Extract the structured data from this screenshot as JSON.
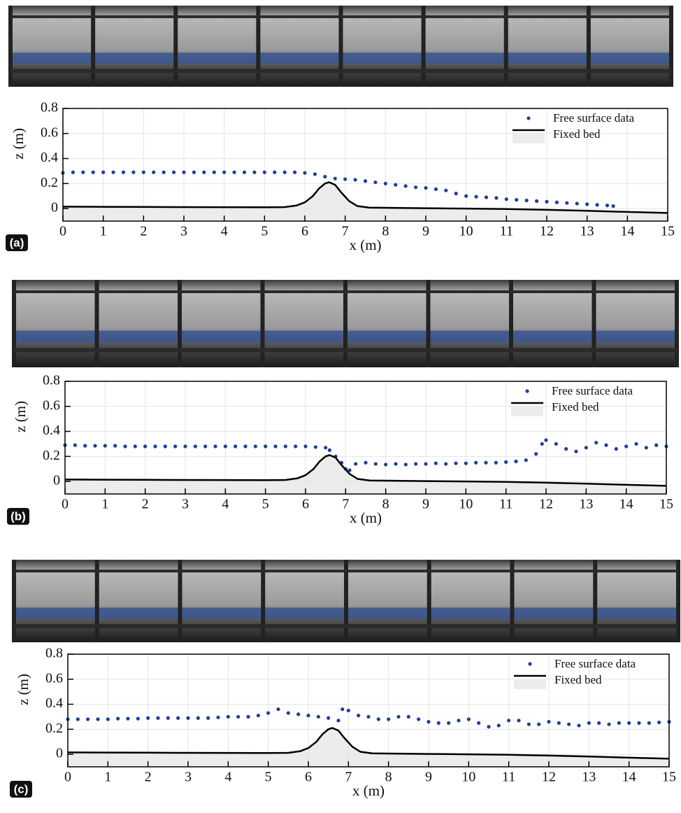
{
  "chart_data": [
    {
      "type": "scatter",
      "label": "(a)",
      "xlabel": "x (m)",
      "ylabel": "z (m)",
      "xlim": [
        0,
        15
      ],
      "ylim": [
        -0.1,
        0.8
      ],
      "xticks": [
        0,
        1,
        2,
        3,
        4,
        5,
        6,
        7,
        8,
        9,
        10,
        11,
        12,
        13,
        14,
        15
      ],
      "yticks": [
        0,
        0.2,
        0.4,
        0.6,
        0.8
      ],
      "grid": true,
      "legend": "upper right",
      "series": [
        {
          "name": "Free surface data",
          "color": "#1f3f99",
          "mode": "markers",
          "x": [
            0,
            0.25,
            0.5,
            0.75,
            1,
            1.25,
            1.5,
            1.75,
            2,
            2.25,
            2.5,
            2.75,
            3,
            3.25,
            3.5,
            3.75,
            4,
            4.25,
            4.5,
            4.75,
            5,
            5.25,
            5.5,
            5.75,
            6,
            6.25,
            6.5,
            6.75,
            7,
            7.25,
            7.5,
            7.75,
            8,
            8.25,
            8.5,
            8.75,
            9,
            9.25,
            9.5,
            9.75,
            10,
            10.25,
            10.5,
            10.75,
            11,
            11.25,
            11.5,
            11.75,
            12,
            12.25,
            12.5,
            12.75,
            13,
            13.25,
            13.5,
            13.65
          ],
          "values": [
            0.285,
            0.29,
            0.29,
            0.29,
            0.29,
            0.29,
            0.29,
            0.29,
            0.29,
            0.29,
            0.29,
            0.29,
            0.29,
            0.29,
            0.29,
            0.29,
            0.29,
            0.29,
            0.29,
            0.29,
            0.29,
            0.29,
            0.29,
            0.29,
            0.285,
            0.275,
            0.255,
            0.24,
            0.235,
            0.23,
            0.22,
            0.21,
            0.2,
            0.19,
            0.18,
            0.17,
            0.165,
            0.155,
            0.145,
            0.12,
            0.1,
            0.095,
            0.09,
            0.085,
            0.075,
            0.07,
            0.065,
            0.06,
            0.055,
            0.05,
            0.045,
            0.04,
            0.035,
            0.03,
            0.025,
            0.02
          ]
        },
        {
          "name": "Fixed bed",
          "color": "#000000",
          "fill": "#ececec",
          "mode": "area",
          "x": [
            0,
            1,
            2,
            3,
            4,
            5,
            5.5,
            5.8,
            6,
            6.2,
            6.35,
            6.5,
            6.6,
            6.75,
            6.9,
            7.1,
            7.3,
            7.6,
            8,
            9,
            10,
            11,
            12,
            13,
            14,
            15
          ],
          "values": [
            0.015,
            0.014,
            0.013,
            0.012,
            0.011,
            0.01,
            0.012,
            0.025,
            0.05,
            0.1,
            0.16,
            0.2,
            0.21,
            0.19,
            0.13,
            0.06,
            0.02,
            0.008,
            0.006,
            0.003,
            0,
            -0.004,
            -0.01,
            -0.018,
            -0.027,
            -0.035
          ]
        }
      ]
    },
    {
      "type": "scatter",
      "label": "(b)",
      "xlabel": "x (m)",
      "ylabel": "z (m)",
      "xlim": [
        0,
        15
      ],
      "ylim": [
        -0.1,
        0.8
      ],
      "xticks": [
        0,
        1,
        2,
        3,
        4,
        5,
        6,
        7,
        8,
        9,
        10,
        11,
        12,
        13,
        14,
        15
      ],
      "yticks": [
        0,
        0.2,
        0.4,
        0.6,
        0.8
      ],
      "grid": true,
      "legend": "upper right",
      "series": [
        {
          "name": "Free surface data",
          "color": "#1f3f99",
          "mode": "markers",
          "x": [
            0,
            0.25,
            0.5,
            0.75,
            1,
            1.25,
            1.5,
            1.75,
            2,
            2.25,
            2.5,
            2.75,
            3,
            3.25,
            3.5,
            3.75,
            4,
            4.25,
            4.5,
            4.75,
            5,
            5.25,
            5.5,
            5.75,
            6,
            6.25,
            6.5,
            6.6,
            6.75,
            6.9,
            7,
            7.1,
            7.25,
            7.5,
            7.75,
            8,
            8.25,
            8.5,
            8.75,
            9,
            9.25,
            9.5,
            9.75,
            10,
            10.25,
            10.5,
            10.75,
            11,
            11.25,
            11.5,
            11.75,
            11.9,
            12,
            12.25,
            12.5,
            12.75,
            13,
            13.25,
            13.5,
            13.75,
            14,
            14.25,
            14.5,
            14.75,
            15
          ],
          "values": [
            0.29,
            0.29,
            0.285,
            0.285,
            0.285,
            0.285,
            0.28,
            0.28,
            0.28,
            0.28,
            0.28,
            0.28,
            0.28,
            0.28,
            0.28,
            0.28,
            0.28,
            0.28,
            0.28,
            0.28,
            0.28,
            0.28,
            0.28,
            0.28,
            0.28,
            0.275,
            0.27,
            0.25,
            0.2,
            0.15,
            0.1,
            0.09,
            0.14,
            0.15,
            0.14,
            0.135,
            0.14,
            0.135,
            0.14,
            0.14,
            0.145,
            0.14,
            0.145,
            0.145,
            0.15,
            0.15,
            0.15,
            0.155,
            0.16,
            0.17,
            0.22,
            0.3,
            0.33,
            0.3,
            0.26,
            0.24,
            0.27,
            0.31,
            0.29,
            0.26,
            0.28,
            0.3,
            0.27,
            0.29,
            0.28
          ]
        },
        {
          "name": "Fixed bed",
          "color": "#000000",
          "fill": "#ececec",
          "mode": "area",
          "x": [
            0,
            1,
            2,
            3,
            4,
            5,
            5.5,
            5.8,
            6,
            6.2,
            6.35,
            6.5,
            6.6,
            6.75,
            6.9,
            7.1,
            7.3,
            7.6,
            8,
            9,
            10,
            11,
            12,
            13,
            14,
            15
          ],
          "values": [
            0.015,
            0.014,
            0.013,
            0.012,
            0.011,
            0.01,
            0.012,
            0.025,
            0.05,
            0.1,
            0.16,
            0.2,
            0.21,
            0.19,
            0.13,
            0.06,
            0.02,
            0.008,
            0.006,
            0.003,
            0,
            -0.004,
            -0.01,
            -0.018,
            -0.027,
            -0.035
          ]
        }
      ]
    },
    {
      "type": "scatter",
      "label": "(c)",
      "xlabel": "x (m)",
      "ylabel": "z (m)",
      "xlim": [
        0,
        15
      ],
      "ylim": [
        -0.1,
        0.8
      ],
      "xticks": [
        0,
        1,
        2,
        3,
        4,
        5,
        6,
        7,
        8,
        9,
        10,
        11,
        12,
        13,
        14,
        15
      ],
      "yticks": [
        0,
        0.2,
        0.4,
        0.6,
        0.8
      ],
      "grid": true,
      "legend": "upper right",
      "series": [
        {
          "name": "Free surface data",
          "color": "#1f3f99",
          "mode": "markers",
          "x": [
            0,
            0.25,
            0.5,
            0.75,
            1,
            1.25,
            1.5,
            1.75,
            2,
            2.25,
            2.5,
            2.75,
            3,
            3.25,
            3.5,
            3.75,
            4,
            4.25,
            4.5,
            4.75,
            5,
            5.25,
            5.5,
            5.75,
            6,
            6.25,
            6.5,
            6.75,
            6.85,
            7,
            7.25,
            7.5,
            7.75,
            8,
            8.25,
            8.5,
            8.75,
            9,
            9.25,
            9.5,
            9.75,
            10,
            10.25,
            10.5,
            10.75,
            11,
            11.25,
            11.5,
            11.75,
            12,
            12.25,
            12.5,
            12.75,
            13,
            13.25,
            13.5,
            13.75,
            14,
            14.25,
            14.5,
            14.75,
            15
          ],
          "values": [
            0.28,
            0.28,
            0.28,
            0.28,
            0.28,
            0.285,
            0.285,
            0.285,
            0.29,
            0.29,
            0.29,
            0.29,
            0.29,
            0.29,
            0.29,
            0.295,
            0.3,
            0.3,
            0.3,
            0.31,
            0.33,
            0.36,
            0.33,
            0.32,
            0.31,
            0.3,
            0.29,
            0.27,
            0.36,
            0.35,
            0.31,
            0.3,
            0.28,
            0.28,
            0.3,
            0.3,
            0.28,
            0.26,
            0.25,
            0.25,
            0.27,
            0.28,
            0.25,
            0.22,
            0.23,
            0.27,
            0.27,
            0.24,
            0.24,
            0.26,
            0.25,
            0.24,
            0.23,
            0.25,
            0.25,
            0.24,
            0.25,
            0.25,
            0.25,
            0.25,
            0.255,
            0.26
          ]
        },
        {
          "name": "Fixed bed",
          "color": "#000000",
          "fill": "#ececec",
          "mode": "area",
          "x": [
            0,
            1,
            2,
            3,
            4,
            5,
            5.5,
            5.8,
            6,
            6.2,
            6.35,
            6.5,
            6.6,
            6.75,
            6.9,
            7.1,
            7.3,
            7.6,
            8,
            9,
            10,
            11,
            12,
            13,
            14,
            15
          ],
          "values": [
            0.015,
            0.014,
            0.013,
            0.012,
            0.011,
            0.01,
            0.012,
            0.025,
            0.05,
            0.1,
            0.16,
            0.2,
            0.21,
            0.19,
            0.13,
            0.06,
            0.02,
            0.008,
            0.006,
            0.003,
            0,
            -0.004,
            -0.01,
            -0.018,
            -0.027,
            -0.035
          ]
        }
      ]
    }
  ]
}
